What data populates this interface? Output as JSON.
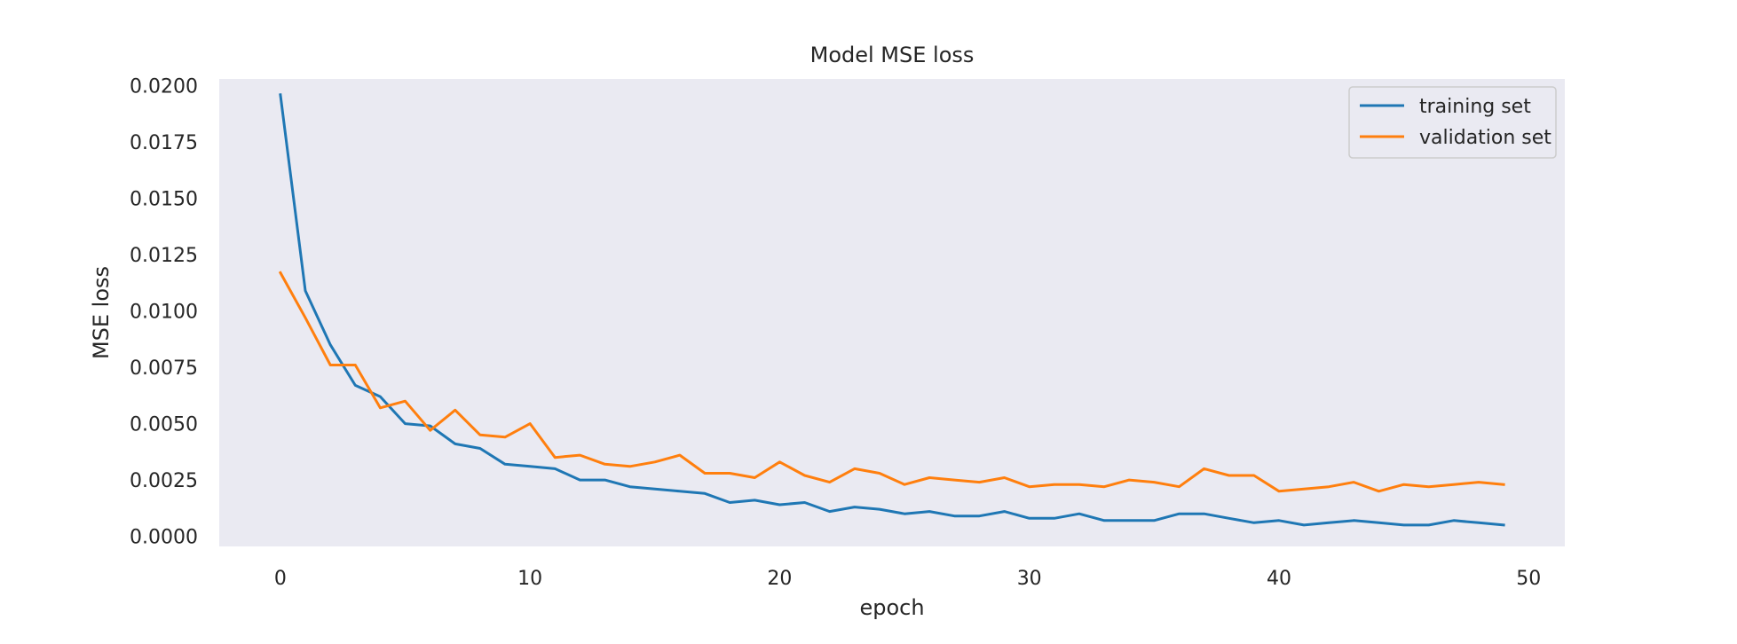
{
  "chart_data": {
    "type": "line",
    "title": "Model MSE loss",
    "xlabel": "epoch",
    "ylabel": "MSE loss",
    "xlim": [
      -2.45,
      51.45
    ],
    "ylim": [
      -0.00045,
      0.0203
    ],
    "x_ticks": [
      0,
      10,
      20,
      30,
      40,
      50
    ],
    "x_tick_labels": [
      "0",
      "10",
      "20",
      "30",
      "40",
      "50"
    ],
    "y_ticks": [
      0.0,
      0.0025,
      0.005,
      0.0075,
      0.01,
      0.0125,
      0.015,
      0.0175,
      0.02
    ],
    "y_tick_labels": [
      "0.0000",
      "0.0025",
      "0.0050",
      "0.0075",
      "0.0100",
      "0.0125",
      "0.0150",
      "0.0175",
      "0.0200"
    ],
    "grid": false,
    "legend_position": "upper right",
    "x": [
      0,
      1,
      2,
      3,
      4,
      5,
      6,
      7,
      8,
      9,
      10,
      11,
      12,
      13,
      14,
      15,
      16,
      17,
      18,
      19,
      20,
      21,
      22,
      23,
      24,
      25,
      26,
      27,
      28,
      29,
      30,
      31,
      32,
      33,
      34,
      35,
      36,
      37,
      38,
      39,
      40,
      41,
      42,
      43,
      44,
      45,
      46,
      47,
      48,
      49
    ],
    "series": [
      {
        "name": "training set",
        "color": "#1f77b4",
        "values": [
          0.0196,
          0.0109,
          0.0085,
          0.0067,
          0.0062,
          0.005,
          0.0049,
          0.0041,
          0.0039,
          0.0032,
          0.0031,
          0.003,
          0.0025,
          0.0025,
          0.0022,
          0.0021,
          0.002,
          0.0019,
          0.0015,
          0.0016,
          0.0014,
          0.0015,
          0.0011,
          0.0013,
          0.0012,
          0.001,
          0.0011,
          0.0009,
          0.0009,
          0.0011,
          0.0008,
          0.0008,
          0.001,
          0.0007,
          0.0007,
          0.0007,
          0.001,
          0.001,
          0.0008,
          0.0006,
          0.0007,
          0.0005,
          0.0006,
          0.0007,
          0.0006,
          0.0005,
          0.0005,
          0.0007,
          0.0006,
          0.0005
        ]
      },
      {
        "name": "validation set",
        "color": "#ff7f0e",
        "values": [
          0.0117,
          0.0097,
          0.0076,
          0.0076,
          0.0057,
          0.006,
          0.0047,
          0.0056,
          0.0045,
          0.0044,
          0.005,
          0.0035,
          0.0036,
          0.0032,
          0.0031,
          0.0033,
          0.0036,
          0.0028,
          0.0028,
          0.0026,
          0.0033,
          0.0027,
          0.0024,
          0.003,
          0.0028,
          0.0023,
          0.0026,
          0.0025,
          0.0024,
          0.0026,
          0.0022,
          0.0023,
          0.0023,
          0.0022,
          0.0025,
          0.0024,
          0.0022,
          0.003,
          0.0027,
          0.0027,
          0.002,
          0.0021,
          0.0022,
          0.0024,
          0.002,
          0.0023,
          0.0022,
          0.0023,
          0.0024,
          0.0023
        ]
      }
    ],
    "colors": {
      "plot_background": "#eaeaf2",
      "page_background": "#ffffff",
      "text": "#262626"
    }
  }
}
